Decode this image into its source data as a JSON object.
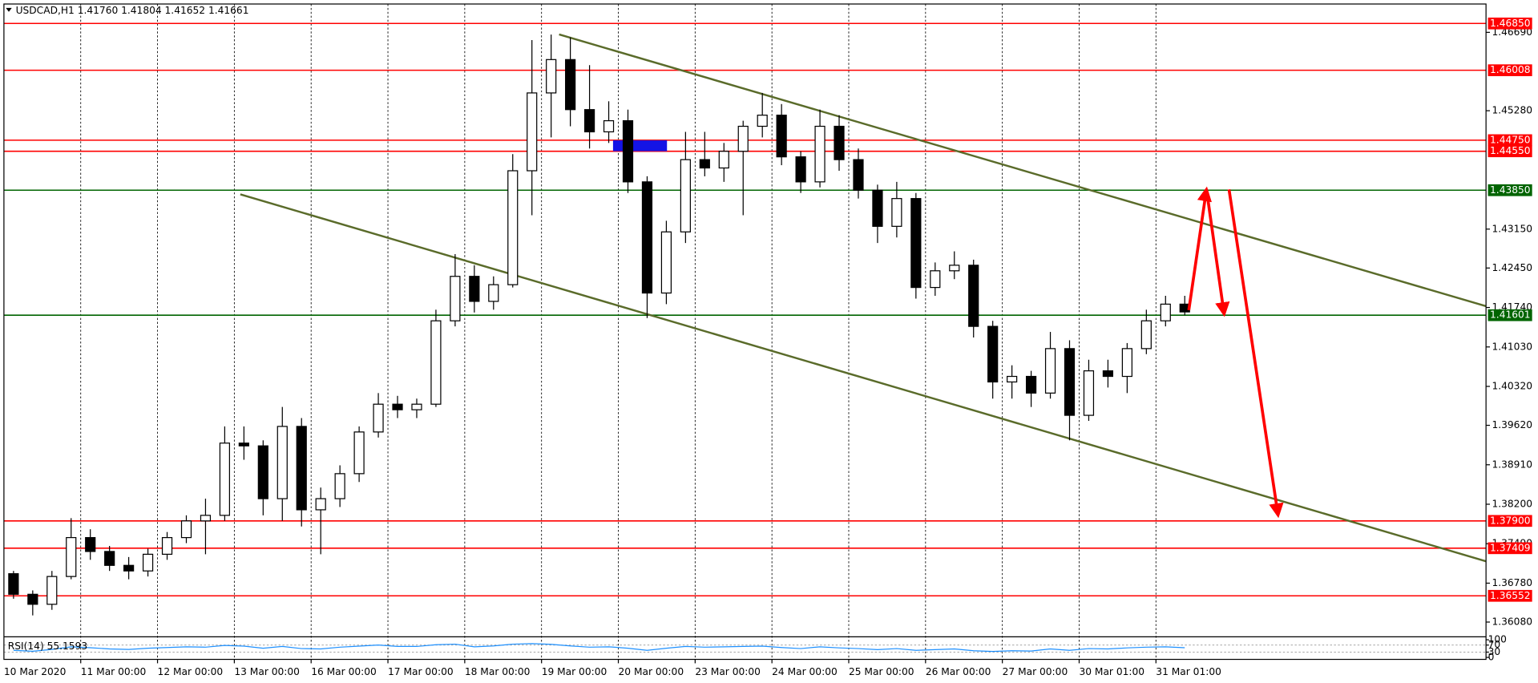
{
  "chart_data": {
    "type": "candlestick",
    "title": "USDCAD,H1  1.41760 1.41804 1.41652 1.41661",
    "categories": [
      "10 Mar 2020",
      null,
      null,
      null,
      "11 Mar 00:00",
      null,
      null,
      null,
      "12 Mar 00:00",
      null,
      null,
      null,
      "13 Mar 00:00",
      null,
      null,
      null,
      "16 Mar 00:00",
      null,
      null,
      null,
      "17 Mar 00:00",
      null,
      null,
      null,
      "18 Mar 00:00",
      null,
      null,
      null,
      "19 Mar 00:00",
      null,
      null,
      null,
      "20 Mar 00:00",
      null,
      null,
      null,
      "23 Mar 00:00",
      null,
      null,
      null,
      "24 Mar 00:00",
      null,
      null,
      null,
      "25 Mar 00:00",
      null,
      null,
      null,
      "26 Mar 00:00",
      null,
      null,
      null,
      "27 Mar 00:00",
      null,
      null,
      null,
      "30 Mar 01:00",
      null,
      null,
      null,
      "31 Mar 01:00",
      null
    ],
    "open": [
      1.3695,
      1.3658,
      1.364,
      1.369,
      1.376,
      1.3735,
      1.371,
      1.37,
      1.373,
      1.376,
      1.379,
      1.38,
      1.393,
      1.3925,
      1.383,
      1.396,
      1.381,
      1.383,
      1.3875,
      1.395,
      1.4,
      1.399,
      1.4,
      1.415,
      1.423,
      1.4185,
      1.4215,
      1.442,
      1.456,
      1.462,
      1.453,
      1.449,
      1.451,
      1.44,
      1.42,
      1.431,
      1.444,
      1.4425,
      1.4455,
      1.45,
      1.452,
      1.4445,
      1.44,
      1.45,
      1.444,
      1.4385,
      1.432,
      1.437,
      1.421,
      1.424,
      1.425,
      1.414,
      1.404,
      1.405,
      1.402,
      1.41,
      1.398,
      1.406,
      1.405,
      1.41,
      1.415,
      1.418
    ],
    "high": [
      1.37,
      1.3665,
      1.37,
      1.3795,
      1.3775,
      1.3745,
      1.3725,
      1.374,
      1.377,
      1.38,
      1.383,
      1.396,
      1.396,
      1.3935,
      1.3995,
      1.3975,
      1.385,
      1.389,
      1.396,
      1.402,
      1.4015,
      1.401,
      1.417,
      1.427,
      1.425,
      1.423,
      1.445,
      1.4655,
      1.4665,
      1.466,
      1.461,
      1.4545,
      1.453,
      1.441,
      1.433,
      1.449,
      1.449,
      1.447,
      1.451,
      1.456,
      1.454,
      1.4455,
      1.453,
      1.452,
      1.446,
      1.4395,
      1.44,
      1.438,
      1.4255,
      1.4275,
      1.426,
      1.415,
      1.407,
      1.406,
      1.413,
      1.4115,
      1.408,
      1.408,
      1.411,
      1.417,
      1.4195,
      1.4195
    ],
    "low": [
      1.365,
      1.362,
      1.363,
      1.3685,
      1.372,
      1.37,
      1.3685,
      1.369,
      1.372,
      1.375,
      1.373,
      1.379,
      1.39,
      1.38,
      1.379,
      1.378,
      1.373,
      1.3815,
      1.386,
      1.394,
      1.3975,
      1.3975,
      1.3995,
      1.414,
      1.4165,
      1.417,
      1.421,
      1.434,
      1.448,
      1.45,
      1.446,
      1.447,
      1.438,
      1.4155,
      1.418,
      1.429,
      1.441,
      1.44,
      1.434,
      1.448,
      1.443,
      1.438,
      1.439,
      1.442,
      1.437,
      1.429,
      1.43,
      1.419,
      1.4195,
      1.4225,
      1.412,
      1.401,
      1.401,
      1.3995,
      1.401,
      1.3935,
      1.397,
      1.403,
      1.402,
      1.409,
      1.414,
      1.416
    ],
    "close": [
      1.3658,
      1.364,
      1.369,
      1.376,
      1.3735,
      1.371,
      1.37,
      1.373,
      1.376,
      1.379,
      1.38,
      1.393,
      1.3925,
      1.383,
      1.396,
      1.381,
      1.383,
      1.3875,
      1.395,
      1.4,
      1.399,
      1.4,
      1.415,
      1.423,
      1.4185,
      1.4215,
      1.442,
      1.456,
      1.462,
      1.453,
      1.449,
      1.451,
      1.44,
      1.42,
      1.431,
      1.444,
      1.4425,
      1.4455,
      1.45,
      1.452,
      1.4445,
      1.44,
      1.45,
      1.444,
      1.4385,
      1.432,
      1.437,
      1.421,
      1.424,
      1.425,
      1.414,
      1.404,
      1.405,
      1.402,
      1.41,
      1.398,
      1.406,
      1.405,
      1.41,
      1.415,
      1.418,
      1.4166
    ],
    "ylim": [
      1.3585,
      1.472
    ],
    "yticks": [
      {
        "value": 1.4669,
        "label": "1.46690"
      },
      {
        "value": 1.4528,
        "label": "1.45280"
      },
      {
        "value": 1.4315,
        "label": "1.43150"
      },
      {
        "value": 1.4245,
        "label": "1.42450"
      },
      {
        "value": 1.4103,
        "label": "1.41030"
      },
      {
        "value": 1.4032,
        "label": "1.40320"
      },
      {
        "value": 1.3962,
        "label": "1.39620"
      },
      {
        "value": 1.3891,
        "label": "1.38910"
      },
      {
        "value": 1.382,
        "label": "1.38200"
      },
      {
        "value": 1.3749,
        "label": "1.37490"
      },
      {
        "value": 1.3678,
        "label": "1.36780"
      },
      {
        "value": 1.3608,
        "label": "1.36080"
      }
    ],
    "bid": {
      "value": 1.4174,
      "label": "1.41740"
    },
    "levels": [
      {
        "value": 1.4685,
        "label": "1.46850",
        "color": "#ff0000"
      },
      {
        "value": 1.46008,
        "label": "1.46008",
        "color": "#ff0000"
      },
      {
        "value": 1.4475,
        "label": "1.44750",
        "color": "#ff0000"
      },
      {
        "value": 1.4455,
        "label": "1.44550",
        "color": "#ff0000"
      },
      {
        "value": 1.4385,
        "label": "1.43850",
        "color": "#006400"
      },
      {
        "value": 1.41601,
        "label": "1.41601",
        "color": "#006400"
      },
      {
        "value": 1.379,
        "label": "1.37900",
        "color": "#ff0000"
      },
      {
        "value": 1.37409,
        "label": "1.37409",
        "color": "#ff0000"
      },
      {
        "value": 1.36552,
        "label": "1.36552",
        "color": "#ff0000"
      }
    ],
    "grid": true,
    "rsi": {
      "label": "RSI(14) 55.1593",
      "color": "#1e90ff",
      "ylim": [
        0,
        100
      ],
      "yticks": [
        100,
        70,
        30,
        0
      ],
      "levels": [
        70,
        30
      ],
      "values": [
        40,
        35,
        45,
        60,
        55,
        48,
        45,
        52,
        56,
        60,
        58,
        68,
        64,
        52,
        62,
        50,
        48,
        58,
        64,
        70,
        62,
        62,
        72,
        75,
        60,
        65,
        75,
        78,
        74,
        65,
        58,
        60,
        52,
        40,
        52,
        62,
        58,
        60,
        62,
        64,
        56,
        50,
        60,
        54,
        50,
        44,
        50,
        40,
        44,
        48,
        38,
        34,
        38,
        36,
        48,
        40,
        50,
        48,
        54,
        58,
        60,
        55
      ]
    }
  }
}
